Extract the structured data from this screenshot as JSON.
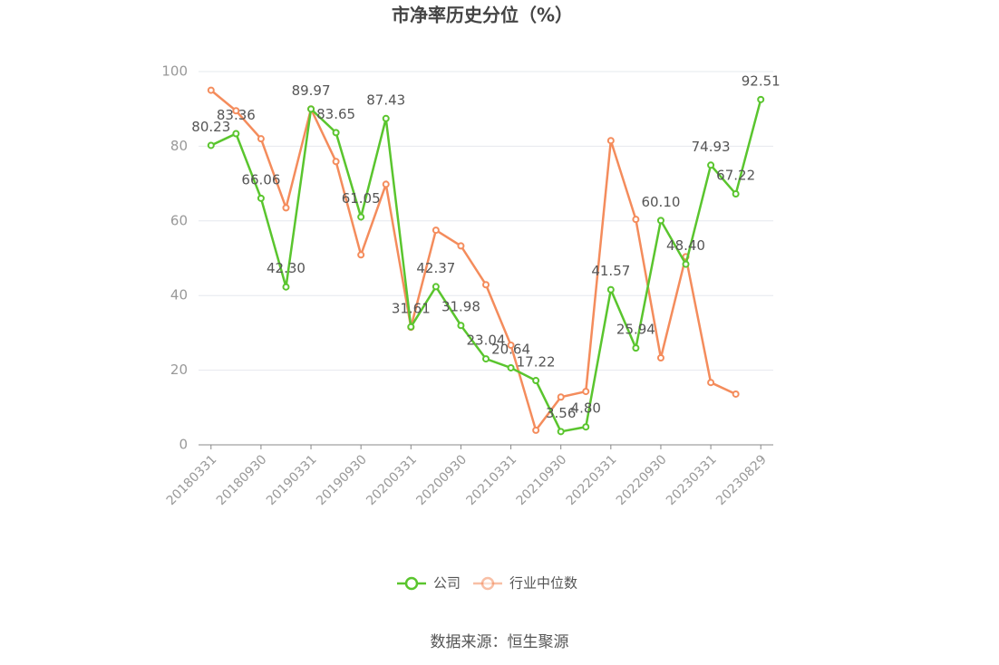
{
  "chart_data": {
    "type": "line",
    "title": "市净率历史分位（%）",
    "categories": [
      "20180331",
      null,
      "20180930",
      null,
      "20190331",
      null,
      "20190930",
      null,
      "20200331",
      null,
      "20200930",
      null,
      "20210331",
      null,
      "20210930",
      null,
      "20220331",
      null,
      "20220930",
      null,
      "20230331",
      null,
      "20230829"
    ],
    "series": [
      {
        "name": "公司",
        "color": "#5ac52e",
        "values": [
          80.23,
          83.36,
          66.06,
          42.3,
          89.97,
          83.65,
          61.05,
          87.43,
          31.61,
          42.37,
          31.98,
          23.04,
          20.64,
          17.22,
          3.56,
          4.8,
          41.57,
          25.94,
          60.1,
          48.4,
          74.93,
          67.22,
          92.51
        ],
        "value_labels": [
          "80.23",
          "83.36",
          "66.06",
          "42.30",
          "89.97",
          "83.65",
          "61.05",
          "87.43",
          "31.61",
          "42.37",
          "31.98",
          "23.04",
          "20.64",
          "17.22",
          "3.56",
          "4.80",
          "41.57",
          "25.94",
          "60.10",
          "48.40",
          "74.93",
          "67.22",
          "92.51"
        ]
      },
      {
        "name": "行业中位数",
        "color": "#f48c5c",
        "values": [
          95.0,
          89.5,
          82.0,
          63.5,
          90.0,
          75.9,
          50.9,
          69.8,
          31.5,
          57.5,
          53.3,
          42.9,
          26.7,
          3.9,
          12.8,
          14.3,
          81.5,
          60.4,
          23.3,
          50.4,
          16.7,
          13.6,
          null
        ]
      }
    ],
    "ylim": [
      0,
      100
    ],
    "yticks": [
      0,
      20,
      40,
      60,
      80,
      100
    ],
    "grid": true,
    "source": "数据来源：恒生聚源"
  }
}
